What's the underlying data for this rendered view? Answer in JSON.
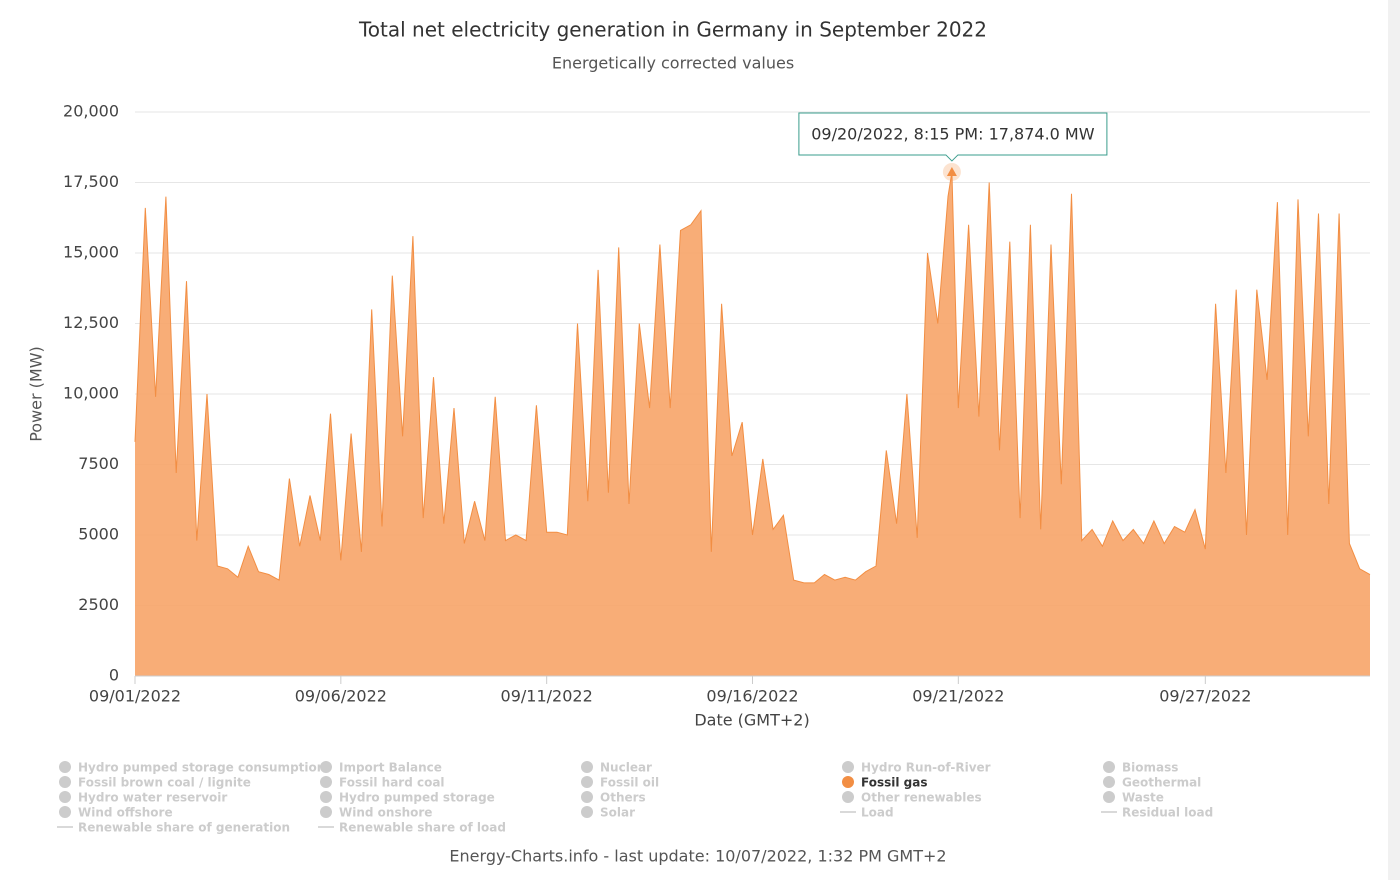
{
  "chart_data": {
    "type": "area",
    "title": "Total net electricity generation in Germany in September 2022",
    "subtitle": "Energetically corrected values",
    "y_label": "Power (MW)",
    "x_label": "Date (GMT+2)",
    "footer": "Energy-Charts.info - last update: 10/07/2022, 1:32 PM GMT+2",
    "tooltip": {
      "text": "09/20/2022, 8:15 PM: 17,874.0 MW",
      "border_color": "#3a9c8c"
    },
    "grid": true,
    "ylim": [
      0,
      20000
    ],
    "yticks": [
      0,
      2500,
      5000,
      7500,
      {
        "value": 10000,
        "label": "10,000"
      },
      {
        "value": 12500,
        "label": "12,500"
      },
      {
        "value": 15000,
        "label": "15,000"
      },
      {
        "value": 17500,
        "label": "17,500"
      },
      {
        "value": 20000,
        "label": "20,000"
      }
    ],
    "xlim": [
      "2022-09-01T00:00",
      "2022-10-01T00:00"
    ],
    "xticks": [
      {
        "value": "2022-09-01T00:00",
        "label": "09/01/2022"
      },
      {
        "value": "2022-09-06T00:00",
        "label": "09/06/2022"
      },
      {
        "value": "2022-09-11T00:00",
        "label": "09/11/2022"
      },
      {
        "value": "2022-09-16T00:00",
        "label": "09/16/2022"
      },
      {
        "value": "2022-09-21T00:00",
        "label": "09/21/2022"
      },
      {
        "value": "2022-09-27T00:00",
        "label": "09/27/2022"
      }
    ],
    "x": [
      "2022-09-01T00:00",
      "2022-09-01T06:00",
      "2022-09-01T12:00",
      "2022-09-01T18:00",
      "2022-09-02T00:00",
      "2022-09-02T06:00",
      "2022-09-02T12:00",
      "2022-09-02T18:00",
      "2022-09-03T00:00",
      "2022-09-03T06:00",
      "2022-09-03T12:00",
      "2022-09-03T18:00",
      "2022-09-04T00:00",
      "2022-09-04T06:00",
      "2022-09-04T12:00",
      "2022-09-04T18:00",
      "2022-09-05T00:00",
      "2022-09-05T06:00",
      "2022-09-05T12:00",
      "2022-09-05T18:00",
      "2022-09-06T00:00",
      "2022-09-06T06:00",
      "2022-09-06T12:00",
      "2022-09-06T18:00",
      "2022-09-07T00:00",
      "2022-09-07T06:00",
      "2022-09-07T12:00",
      "2022-09-07T18:00",
      "2022-09-08T00:00",
      "2022-09-08T06:00",
      "2022-09-08T12:00",
      "2022-09-08T18:00",
      "2022-09-09T00:00",
      "2022-09-09T06:00",
      "2022-09-09T12:00",
      "2022-09-09T18:00",
      "2022-09-10T00:00",
      "2022-09-10T06:00",
      "2022-09-10T12:00",
      "2022-09-10T18:00",
      "2022-09-11T00:00",
      "2022-09-11T06:00",
      "2022-09-11T12:00",
      "2022-09-11T18:00",
      "2022-09-12T00:00",
      "2022-09-12T06:00",
      "2022-09-12T12:00",
      "2022-09-12T18:00",
      "2022-09-13T00:00",
      "2022-09-13T06:00",
      "2022-09-13T12:00",
      "2022-09-13T18:00",
      "2022-09-14T00:00",
      "2022-09-14T06:00",
      "2022-09-14T12:00",
      "2022-09-14T18:00",
      "2022-09-15T00:00",
      "2022-09-15T06:00",
      "2022-09-15T12:00",
      "2022-09-15T18:00",
      "2022-09-16T00:00",
      "2022-09-16T06:00",
      "2022-09-16T12:00",
      "2022-09-16T18:00",
      "2022-09-17T00:00",
      "2022-09-17T06:00",
      "2022-09-17T12:00",
      "2022-09-17T18:00",
      "2022-09-18T00:00",
      "2022-09-18T06:00",
      "2022-09-18T12:00",
      "2022-09-18T18:00",
      "2022-09-19T00:00",
      "2022-09-19T06:00",
      "2022-09-19T12:00",
      "2022-09-19T18:00",
      "2022-09-20T00:00",
      "2022-09-20T06:00",
      "2022-09-20T12:00",
      "2022-09-20T18:00",
      "2022-09-20T20:15",
      "2022-09-21T00:00",
      "2022-09-21T06:00",
      "2022-09-21T12:00",
      "2022-09-21T18:00",
      "2022-09-22T00:00",
      "2022-09-22T06:00",
      "2022-09-22T12:00",
      "2022-09-22T18:00",
      "2022-09-23T00:00",
      "2022-09-23T06:00",
      "2022-09-23T12:00",
      "2022-09-23T18:00",
      "2022-09-24T00:00",
      "2022-09-24T06:00",
      "2022-09-24T12:00",
      "2022-09-24T18:00",
      "2022-09-25T00:00",
      "2022-09-25T06:00",
      "2022-09-25T12:00",
      "2022-09-25T18:00",
      "2022-09-26T00:00",
      "2022-09-26T06:00",
      "2022-09-26T12:00",
      "2022-09-26T18:00",
      "2022-09-27T00:00",
      "2022-09-27T06:00",
      "2022-09-27T12:00",
      "2022-09-27T18:00",
      "2022-09-28T00:00",
      "2022-09-28T06:00",
      "2022-09-28T12:00",
      "2022-09-28T18:00",
      "2022-09-29T00:00",
      "2022-09-29T06:00",
      "2022-09-29T12:00",
      "2022-09-29T18:00",
      "2022-09-30T00:00",
      "2022-09-30T06:00",
      "2022-09-30T12:00",
      "2022-09-30T18:00",
      "2022-10-01T00:00"
    ],
    "series": [
      {
        "name": "Hydro pumped storage consumption",
        "visible": false,
        "symbol": "dot"
      },
      {
        "name": "Import Balance",
        "visible": false,
        "symbol": "dot"
      },
      {
        "name": "Nuclear",
        "visible": false,
        "symbol": "dot"
      },
      {
        "name": "Hydro Run-of-River",
        "visible": false,
        "symbol": "dot"
      },
      {
        "name": "Biomass",
        "visible": false,
        "symbol": "dot"
      },
      {
        "name": "Fossil brown coal / lignite",
        "visible": false,
        "symbol": "dot"
      },
      {
        "name": "Fossil hard coal",
        "visible": false,
        "symbol": "dot"
      },
      {
        "name": "Fossil oil",
        "visible": false,
        "symbol": "dot"
      },
      {
        "name": "Fossil gas",
        "visible": true,
        "symbol": "dot",
        "color": "#f7a468",
        "legend_color": "#f28e43",
        "values": [
          8300,
          16600,
          9900,
          17000,
          7200,
          14000,
          4800,
          10000,
          3900,
          3800,
          3500,
          4600,
          3700,
          3600,
          3400,
          7000,
          4600,
          6400,
          4800,
          9300,
          4100,
          8600,
          4400,
          13000,
          5300,
          14200,
          8500,
          15600,
          5600,
          10600,
          5400,
          9500,
          4700,
          6200,
          4800,
          9900,
          4800,
          5000,
          4800,
          9600,
          5100,
          5100,
          5000,
          12500,
          6200,
          14400,
          6500,
          15200,
          6100,
          12500,
          9500,
          15300,
          9500,
          15800,
          16000,
          16500,
          4400,
          13200,
          7800,
          9000,
          5000,
          7700,
          5200,
          5700,
          3400,
          3300,
          3300,
          3600,
          3400,
          3500,
          3400,
          3700,
          3900,
          8000,
          5400,
          10000,
          4900,
          15000,
          12500,
          17000,
          17874,
          9500,
          16000,
          9200,
          17500,
          8000,
          15400,
          5600,
          16000,
          5200,
          15300,
          6800,
          17100,
          4800,
          5200,
          4600,
          5500,
          4800,
          5200,
          4700,
          5500,
          4700,
          5300,
          5100,
          5900,
          4500,
          13200,
          7200,
          13700,
          5000,
          13700,
          10500,
          16800,
          5000,
          16900,
          8500,
          16400,
          6100,
          16400,
          4700,
          3800,
          3600
        ]
      },
      {
        "name": "Geothermal",
        "visible": false,
        "symbol": "dot"
      },
      {
        "name": "Hydro water reservoir",
        "visible": false,
        "symbol": "dot"
      },
      {
        "name": "Hydro pumped storage",
        "visible": false,
        "symbol": "dot"
      },
      {
        "name": "Others",
        "visible": false,
        "symbol": "dot"
      },
      {
        "name": "Other renewables",
        "visible": false,
        "symbol": "dot"
      },
      {
        "name": "Waste",
        "visible": false,
        "symbol": "dot"
      },
      {
        "name": "Wind offshore",
        "visible": false,
        "symbol": "dot"
      },
      {
        "name": "Wind onshore",
        "visible": false,
        "symbol": "dot"
      },
      {
        "name": "Solar",
        "visible": false,
        "symbol": "dot"
      },
      {
        "name": "Load",
        "visible": false,
        "symbol": "line"
      },
      {
        "name": "Residual load",
        "visible": false,
        "symbol": "line"
      },
      {
        "name": "Renewable share of generation",
        "visible": false,
        "symbol": "line"
      },
      {
        "name": "Renewable share of load",
        "visible": false,
        "symbol": "line"
      }
    ]
  }
}
